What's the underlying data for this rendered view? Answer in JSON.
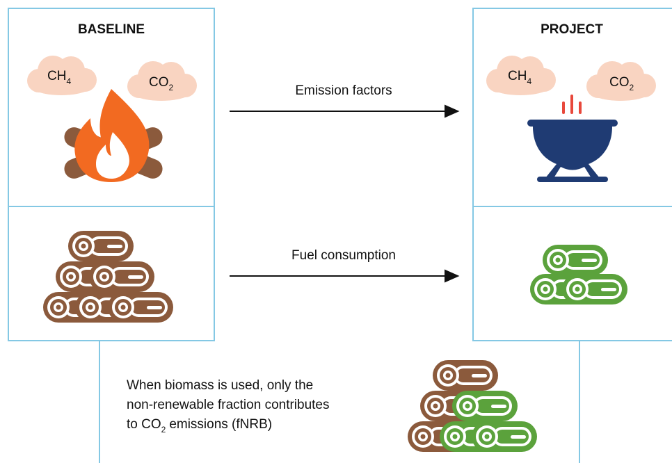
{
  "baseline": {
    "title": "BASELINE",
    "gases": [
      {
        "formula": "CH",
        "subscript": "4"
      },
      {
        "formula": "CO",
        "subscript": "2"
      }
    ]
  },
  "project": {
    "title": "PROJECT",
    "gases": [
      {
        "formula": "CH",
        "subscript": "4"
      },
      {
        "formula": "CO",
        "subscript": "2"
      }
    ]
  },
  "arrows": [
    {
      "label": "Emission factors"
    },
    {
      "label": "Fuel consumption"
    }
  ],
  "note": {
    "lines": [
      "When biomass is used, only the",
      "non-renewable fraction contributes"
    ],
    "last_line": {
      "before": "to CO",
      "subscript": "2",
      "after": "emissions (fNRB)"
    }
  }
}
